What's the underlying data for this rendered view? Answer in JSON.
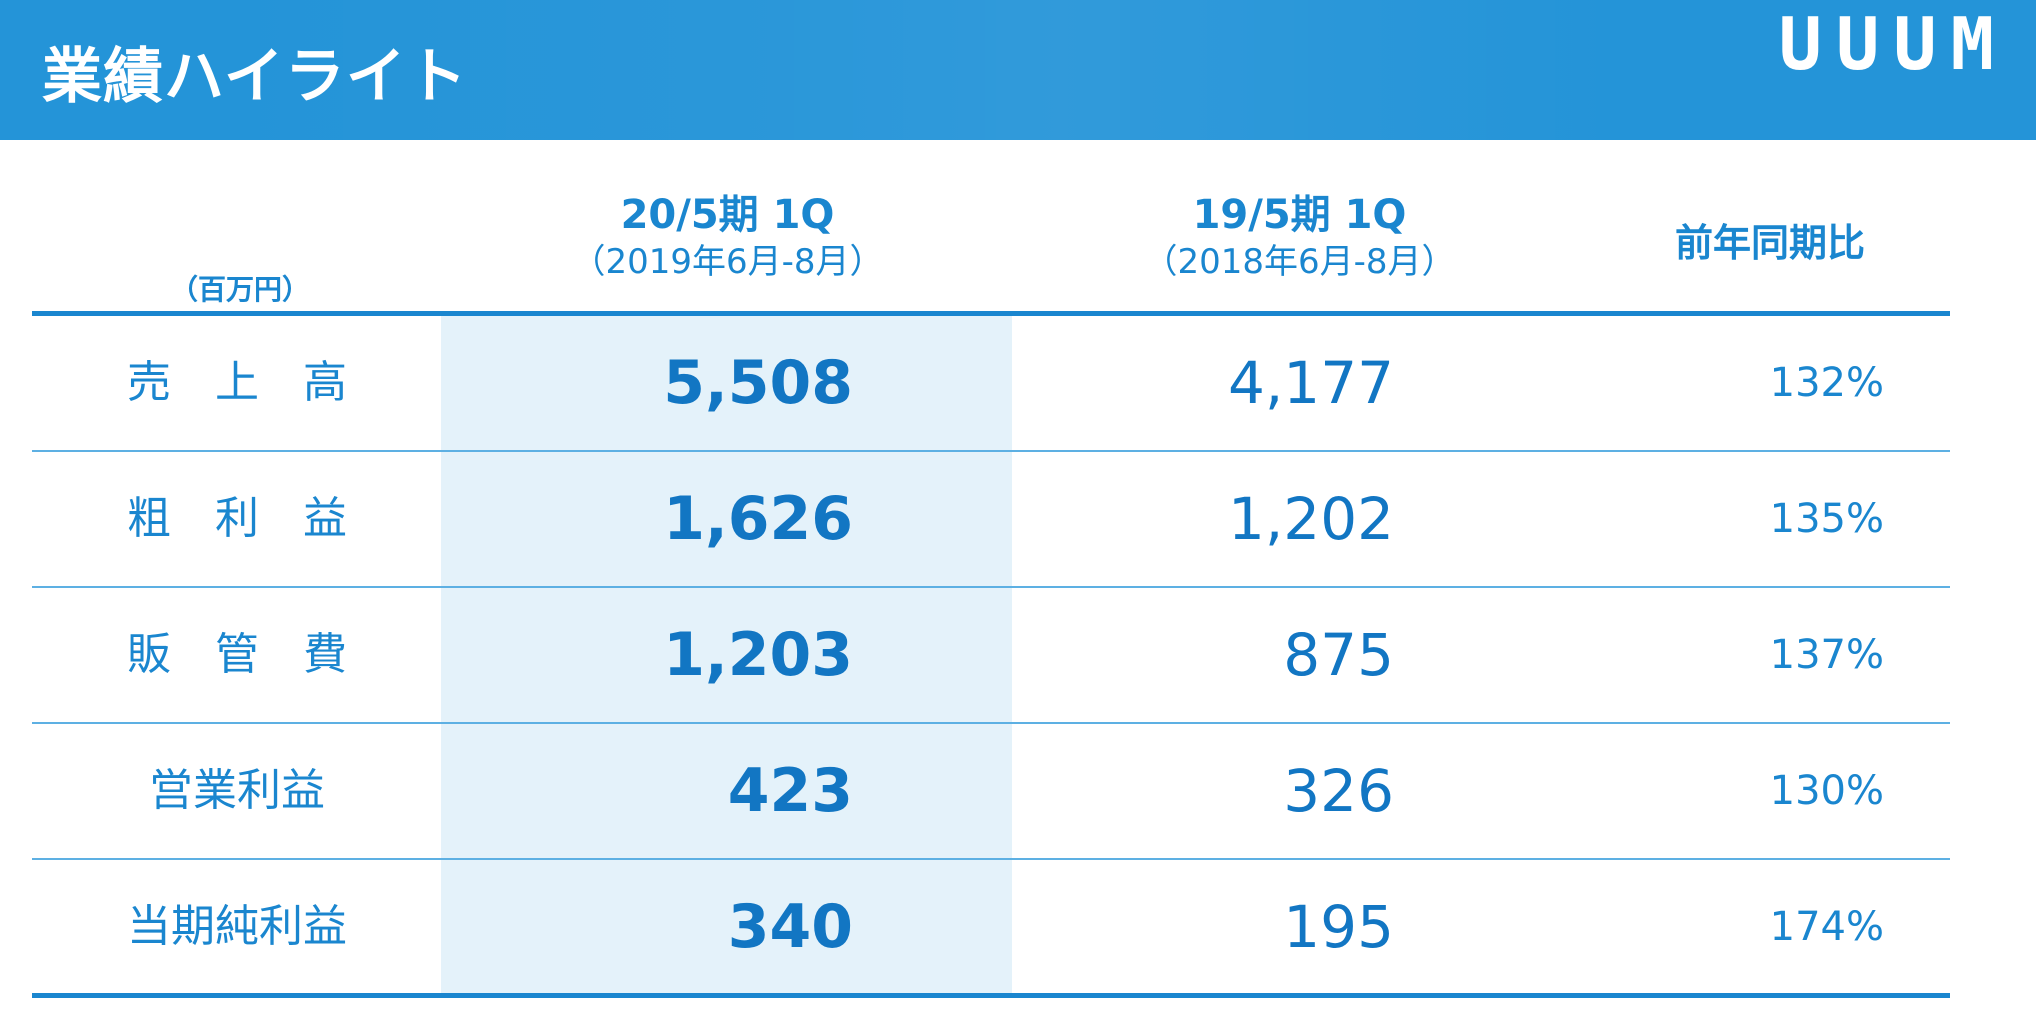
{
  "header": {
    "title": "業績ハイライト",
    "logo": "UUUM"
  },
  "table": {
    "unit_label": "（百万円）",
    "columns": [
      {
        "main": "20/5期 1Q",
        "sub": "（2019年6月-8月）"
      },
      {
        "main": "19/5期 1Q",
        "sub": "（2018年6月-8月）"
      },
      {
        "main": "前年同期比"
      }
    ],
    "rows": [
      {
        "label": "売　上　高",
        "current": "5,508",
        "previous": "4,177",
        "yoy": "132%"
      },
      {
        "label": "粗　利　益",
        "current": "1,626",
        "previous": "1,202",
        "yoy": "135%"
      },
      {
        "label": "販　管　費",
        "current": "1,203",
        "previous": "875",
        "yoy": "137%"
      },
      {
        "label": "営業利益",
        "current": "423",
        "previous": "326",
        "yoy": "130%"
      },
      {
        "label": "当期純利益",
        "current": "340",
        "previous": "195",
        "yoy": "174%"
      }
    ]
  },
  "colors": {
    "header_bg": "#2494d8",
    "accent": "#1a86cf",
    "value_text": "#1276c3",
    "highlight_bg": "#e4f2fa"
  }
}
